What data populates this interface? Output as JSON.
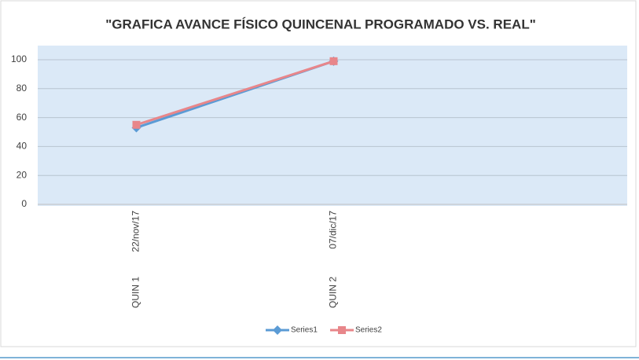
{
  "chart_data": {
    "type": "line",
    "title": "\"GRAFICA AVANCE FÍSICO QUINCENAL PROGRAMADO VS. REAL\"",
    "categories": [
      [
        "QUIN 1",
        "22/nov/17"
      ],
      [
        "QUIN 2",
        "07/dic/17"
      ]
    ],
    "series": [
      {
        "name": "Series1",
        "color": "#5b9bd5",
        "marker": "diamond",
        "values": [
          53,
          99
        ]
      },
      {
        "name": "Series2",
        "color": "#e8868a",
        "marker": "square",
        "values": [
          55,
          99
        ]
      }
    ],
    "ylim": [
      0,
      100
    ],
    "yticks": [
      0,
      20,
      40,
      60,
      80,
      100
    ],
    "grid": true,
    "legend": "bottom"
  }
}
